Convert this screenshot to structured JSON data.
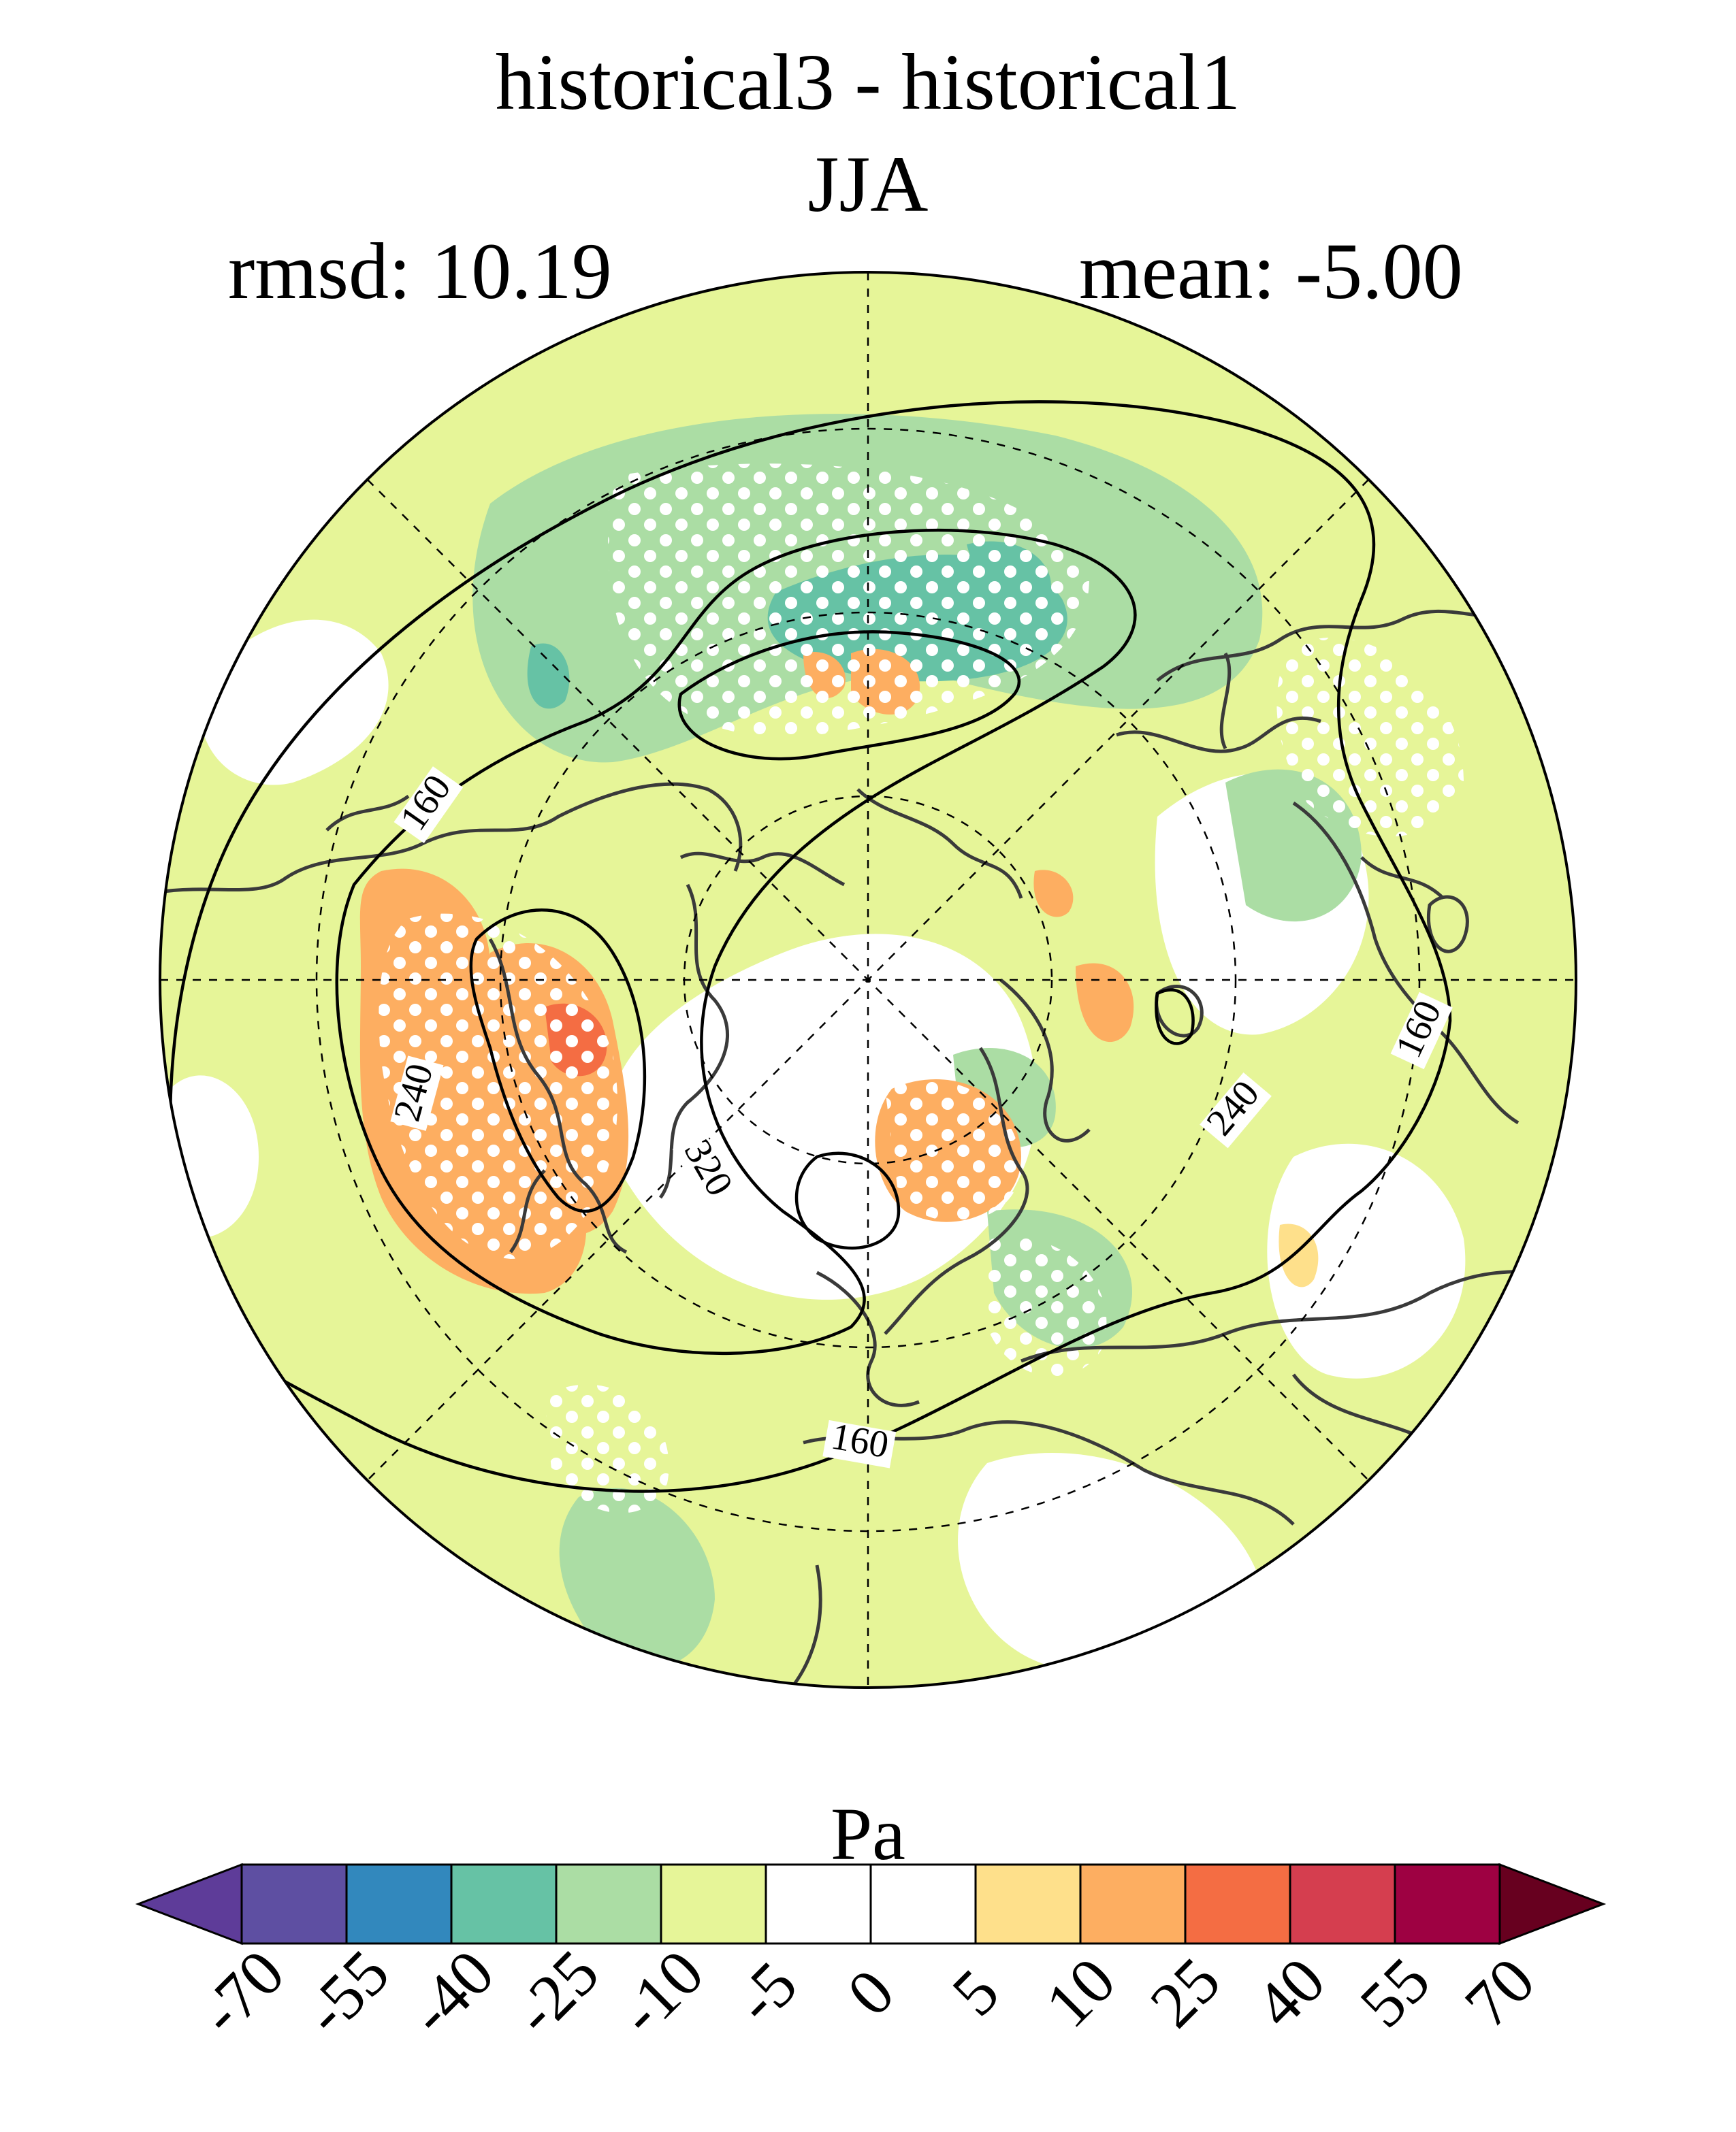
{
  "title": "historical3 - historical1",
  "season": "JJA",
  "rmsd_label": "rmsd: 10.19",
  "mean_label": "mean: -5.00",
  "units": "Pa",
  "colorbar": {
    "levels": [
      "-70",
      "-55",
      "-40",
      "-25",
      "-10",
      "-5",
      "0",
      "5",
      "10",
      "25",
      "40",
      "55",
      "70"
    ],
    "colors": [
      "#5e3c99",
      "#5e4fa2",
      "#3288bd",
      "#66c2a5",
      "#abdda4",
      "#e6f598",
      "#ffffff",
      "#ffffff",
      "#fee08b",
      "#fdae61",
      "#f46d43",
      "#d53e4f",
      "#9e0142",
      "#67001f"
    ]
  },
  "contour_labels": [
    "160",
    "240",
    "320",
    "160",
    "240",
    "160"
  ],
  "map": {
    "projection": "north polar stereographic",
    "stippling": "white dots mark significant differences",
    "field_colors": {
      "strong_neg": "#66c2a5",
      "neg": "#abdda4",
      "weak_neg": "#e6f598",
      "neutral": "#ffffff",
      "weak_pos": "#fee08b",
      "pos": "#fdae61",
      "strong_pos": "#f46d43"
    }
  }
}
